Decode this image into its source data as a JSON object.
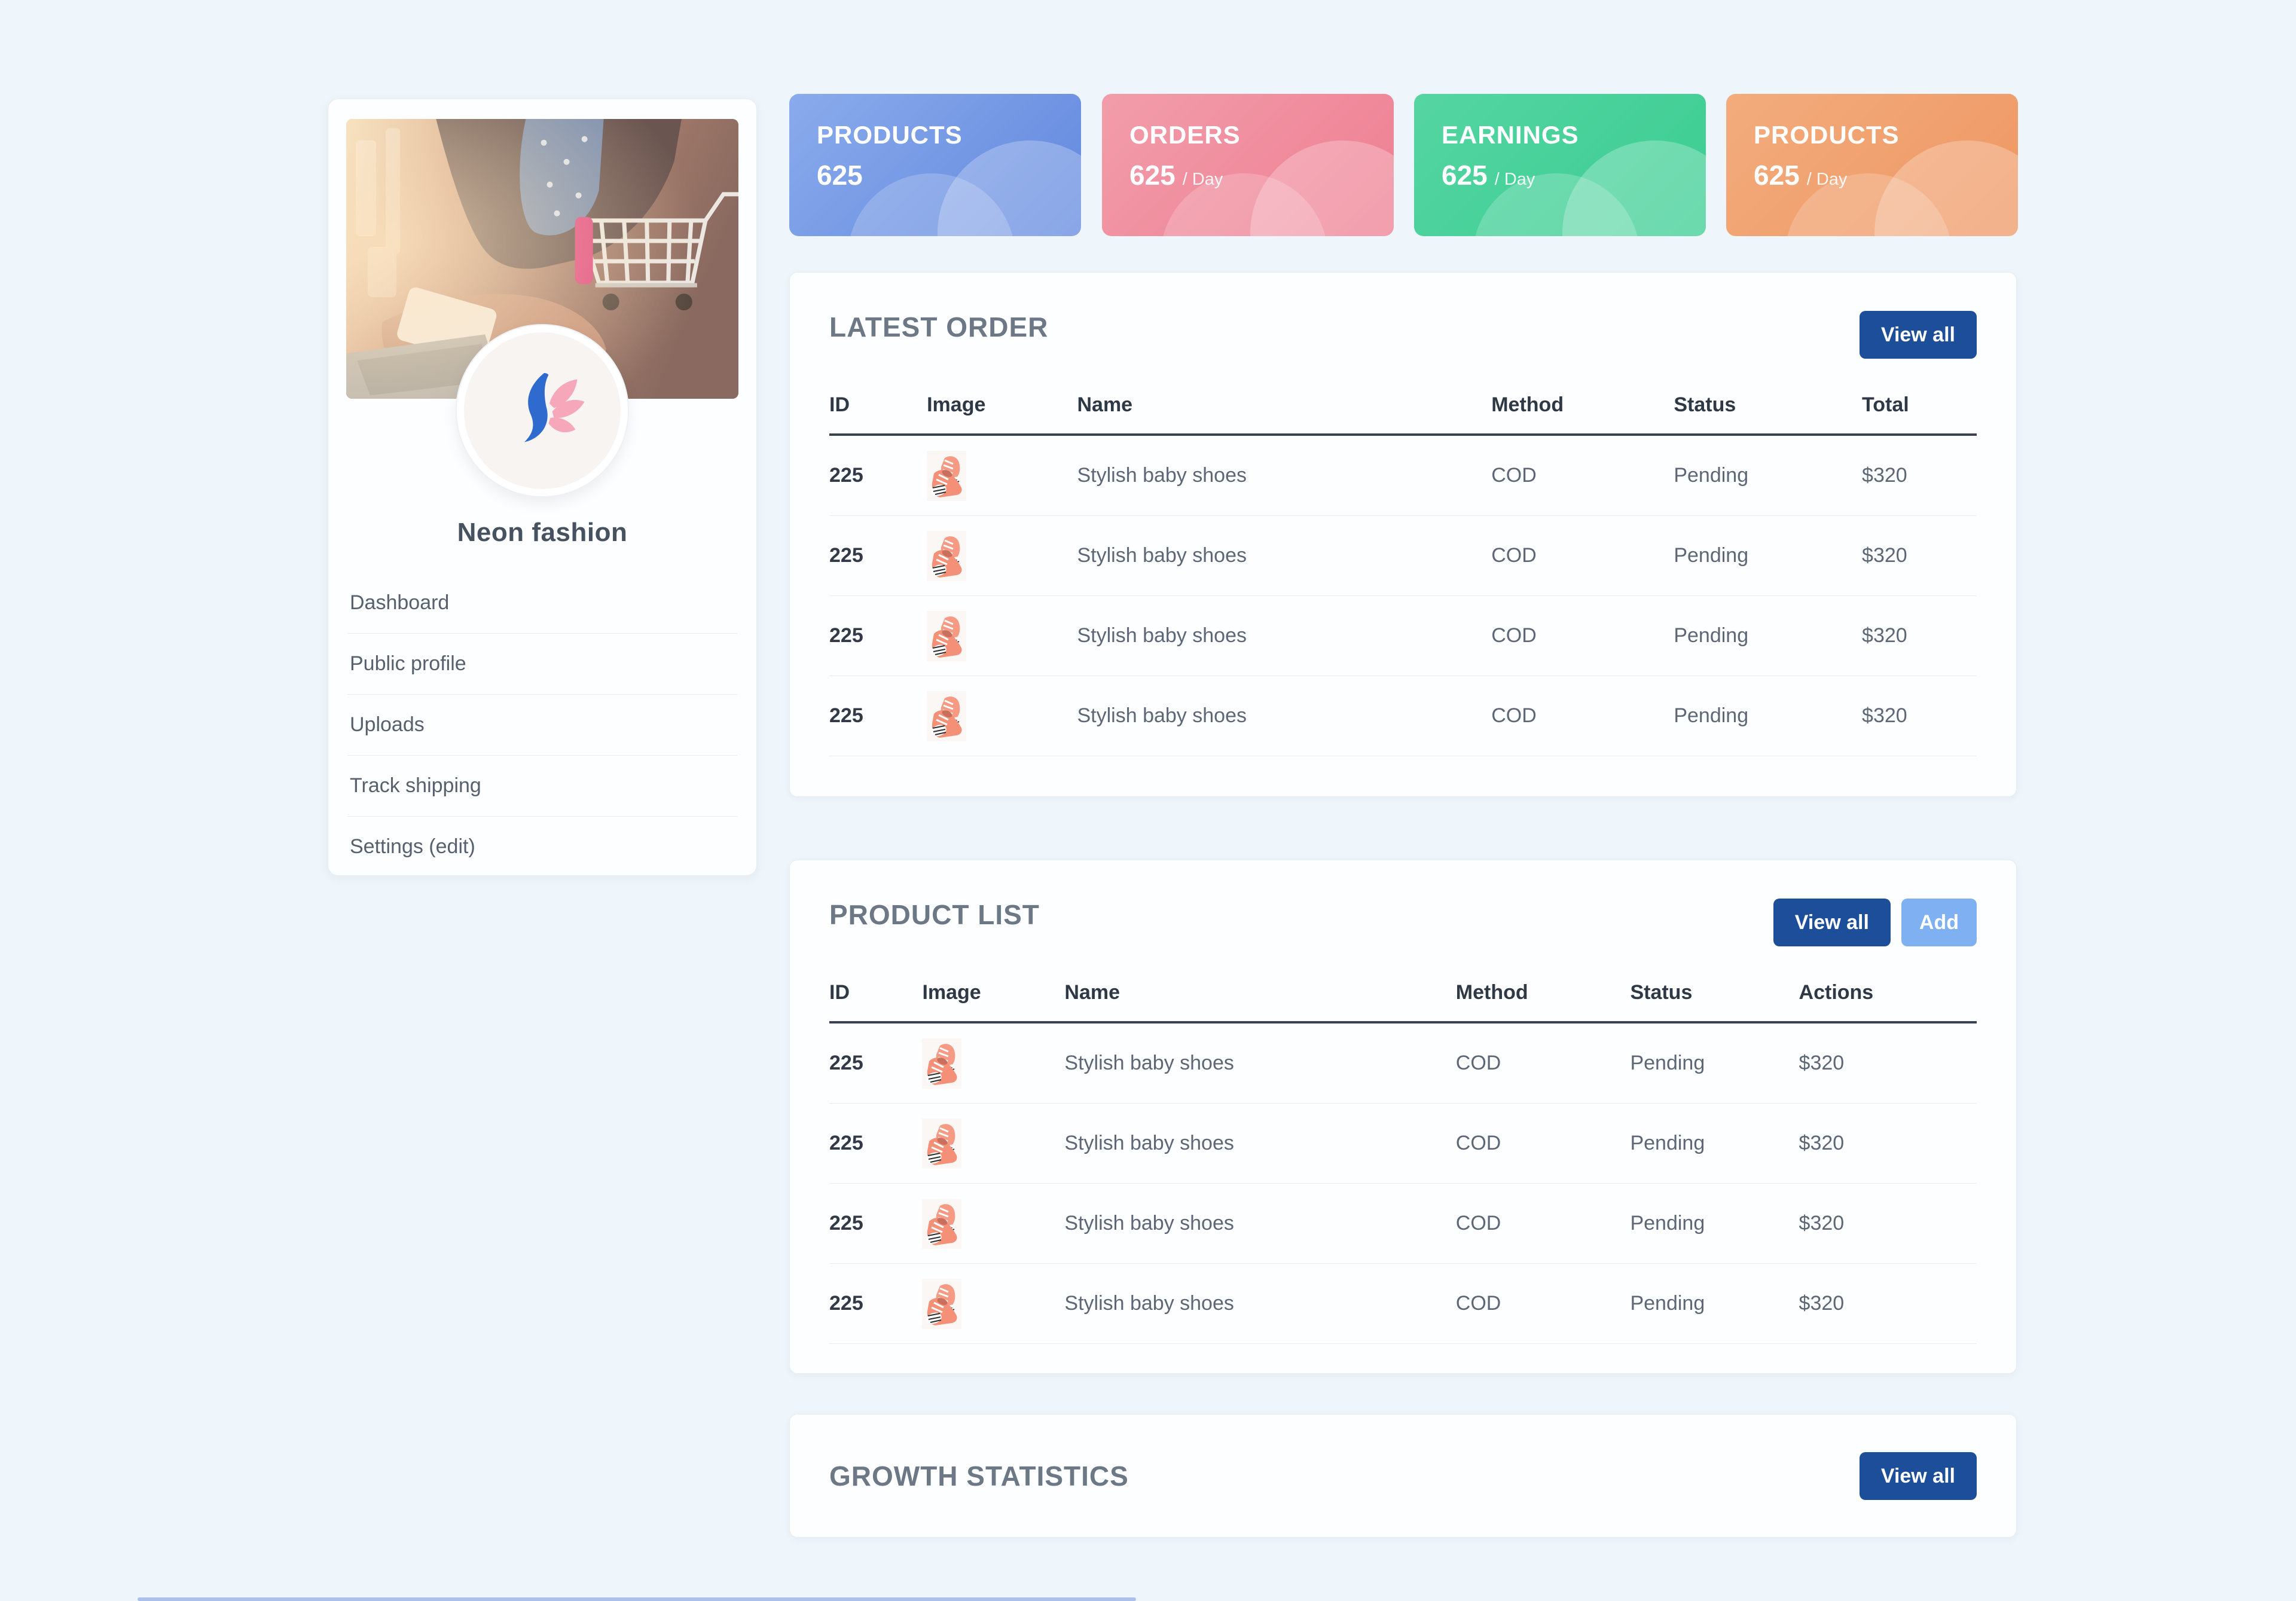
{
  "colors": {
    "page_bg": "#eef5fb",
    "accent_navy": "#1d4e9a",
    "accent_light_blue": "#7fb0f2",
    "stat_blue_from": "#8aabec",
    "stat_blue_to": "#6288de",
    "stat_pink_from": "#f29daa",
    "stat_pink_to": "#ee7e92",
    "stat_green_from": "#55d5a2",
    "stat_green_to": "#3bcd92",
    "stat_orange_from": "#f3ac7d",
    "stat_orange_to": "#ee9763"
  },
  "profile": {
    "name": "Neon fashion",
    "menu": [
      {
        "label": "Dashboard"
      },
      {
        "label": "Public profile"
      },
      {
        "label": "Uploads"
      },
      {
        "label": "Track shipping"
      },
      {
        "label": "Settings (edit)"
      }
    ]
  },
  "stats": [
    {
      "title": "PRODUCTS",
      "value": "625",
      "suffix": "",
      "from": "#8aabec",
      "to": "#6288de"
    },
    {
      "title": "ORDERS",
      "value": "625",
      "suffix": "/ Day",
      "from": "#f29daa",
      "to": "#ee7e92"
    },
    {
      "title": "EARNINGS",
      "value": "625",
      "suffix": "/ Day",
      "from": "#55d5a2",
      "to": "#3bcd92"
    },
    {
      "title": "PRODUCTS",
      "value": "625",
      "suffix": "/ Day",
      "from": "#f3ac7d",
      "to": "#ee9763"
    }
  ],
  "latest_order": {
    "title": "LATEST ORDER",
    "view_all_label": "View all",
    "columns": [
      "ID",
      "Image",
      "Name",
      "Method",
      "Status",
      "Total"
    ],
    "rows": [
      {
        "id": "225",
        "name": "Stylish baby shoes",
        "method": "COD",
        "status": "Pending",
        "amount": "$320"
      },
      {
        "id": "225",
        "name": "Stylish baby shoes",
        "method": "COD",
        "status": "Pending",
        "amount": "$320"
      },
      {
        "id": "225",
        "name": "Stylish baby shoes",
        "method": "COD",
        "status": "Pending",
        "amount": "$320"
      },
      {
        "id": "225",
        "name": "Stylish baby shoes",
        "method": "COD",
        "status": "Pending",
        "amount": "$320"
      }
    ]
  },
  "product_list": {
    "title": "PRODUCT LIST",
    "view_all_label": "View all",
    "add_label": "Add",
    "columns": [
      "ID",
      "Image",
      "Name",
      "Method",
      "Status",
      "Actions"
    ],
    "rows": [
      {
        "id": "225",
        "name": "Stylish baby shoes",
        "method": "COD",
        "status": "Pending",
        "amount": "$320"
      },
      {
        "id": "225",
        "name": "Stylish baby shoes",
        "method": "COD",
        "status": "Pending",
        "amount": "$320"
      },
      {
        "id": "225",
        "name": "Stylish baby shoes",
        "method": "COD",
        "status": "Pending",
        "amount": "$320"
      },
      {
        "id": "225",
        "name": "Stylish baby shoes",
        "method": "COD",
        "status": "Pending",
        "amount": "$320"
      }
    ]
  },
  "growth": {
    "title": "GROWTH STATISTICS",
    "view_all_label": "View all"
  }
}
